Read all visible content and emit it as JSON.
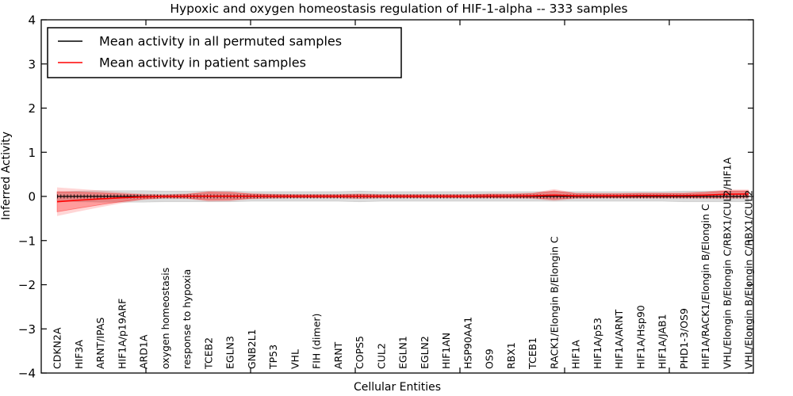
{
  "chart_data": {
    "type": "line",
    "title": "Hypoxic and oxygen homeostasis regulation of HIF-1-alpha -- 333 samples",
    "xlabel": "Cellular Entities",
    "ylabel": "Inferred Activity",
    "ylim": [
      -4,
      4
    ],
    "ytick_labels": [
      "4",
      "3",
      "2",
      "1",
      "0",
      "−1",
      "−2",
      "−3",
      "−4"
    ],
    "grid": false,
    "legend_position": "upper left",
    "frame_color": "#000000",
    "categories": [
      "CDKN2A",
      "HIF3A",
      "ARNT/IPAS",
      "HIF1A/p19ARF",
      "ARD1A",
      "oxygen homeostasis",
      "response to hypoxia",
      "TCEB2",
      "EGLN3",
      "GNB2L1",
      "TP53",
      "VHL",
      "FIH (dimer)",
      "ARNT",
      "COPS5",
      "CUL2",
      "EGLN1",
      "EGLN2",
      "HIF1AN",
      "HSP90AA1",
      "OS9",
      "RBX1",
      "TCEB1",
      "RACK1/Elongin B/Elongin C",
      "HIF1A",
      "HIF1A/p53",
      "HIF1A/ARNT",
      "HIF1A/Hsp90",
      "HIF1A/JAB1",
      "PHD1-3/OS9",
      "HIF1A/RACK1/Elongin B/Elongin C",
      "VHL/Elongin B/Elongin C/RBX1/CUL2/HIF1A",
      "VHL/Elongin B/Elongin C/RBX1/CUL2"
    ],
    "series": [
      {
        "name": "Mean activity in all permuted samples",
        "color": "#000000",
        "band_color": "rgba(0,0,0,0.14)",
        "values": [
          0,
          0,
          0,
          0,
          0,
          0,
          0,
          0,
          0,
          0,
          0,
          0,
          0,
          0,
          0,
          0,
          0,
          0,
          0,
          0,
          0,
          0,
          0,
          0,
          0,
          0,
          0,
          0,
          0,
          0,
          0,
          0,
          0
        ],
        "band_halfwidth": [
          0.1,
          0.12,
          0.13,
          0.13,
          0.13,
          0.12,
          0.12,
          0.12,
          0.12,
          0.11,
          0.11,
          0.11,
          0.11,
          0.11,
          0.12,
          0.11,
          0.11,
          0.11,
          0.11,
          0.11,
          0.11,
          0.11,
          0.11,
          0.11,
          0.11,
          0.11,
          0.11,
          0.11,
          0.11,
          0.12,
          0.12,
          0.12,
          0.12
        ]
      },
      {
        "name": "Mean activity in patient samples",
        "color": "#ff0000",
        "band_color": "rgba(255,0,0,0.27)",
        "values": [
          -0.12,
          -0.085,
          -0.055,
          -0.03,
          -0.01,
          0,
          0.005,
          0.005,
          0.005,
          0.005,
          0.005,
          0.005,
          0.005,
          0.005,
          0.005,
          0.005,
          0.005,
          0.005,
          0.005,
          0.005,
          0.01,
          0.01,
          0.015,
          0.03,
          0.015,
          0.015,
          0.015,
          0.02,
          0.02,
          0.02,
          0.03,
          0.05,
          0.055
        ],
        "band_halfwidth": [
          0.24,
          0.19,
          0.14,
          0.09,
          0.05,
          0.035,
          0.045,
          0.09,
          0.085,
          0.05,
          0.04,
          0.035,
          0.035,
          0.035,
          0.045,
          0.035,
          0.035,
          0.035,
          0.035,
          0.035,
          0.04,
          0.04,
          0.05,
          0.1,
          0.05,
          0.045,
          0.045,
          0.05,
          0.05,
          0.05,
          0.06,
          0.08,
          0.075
        ]
      }
    ]
  }
}
